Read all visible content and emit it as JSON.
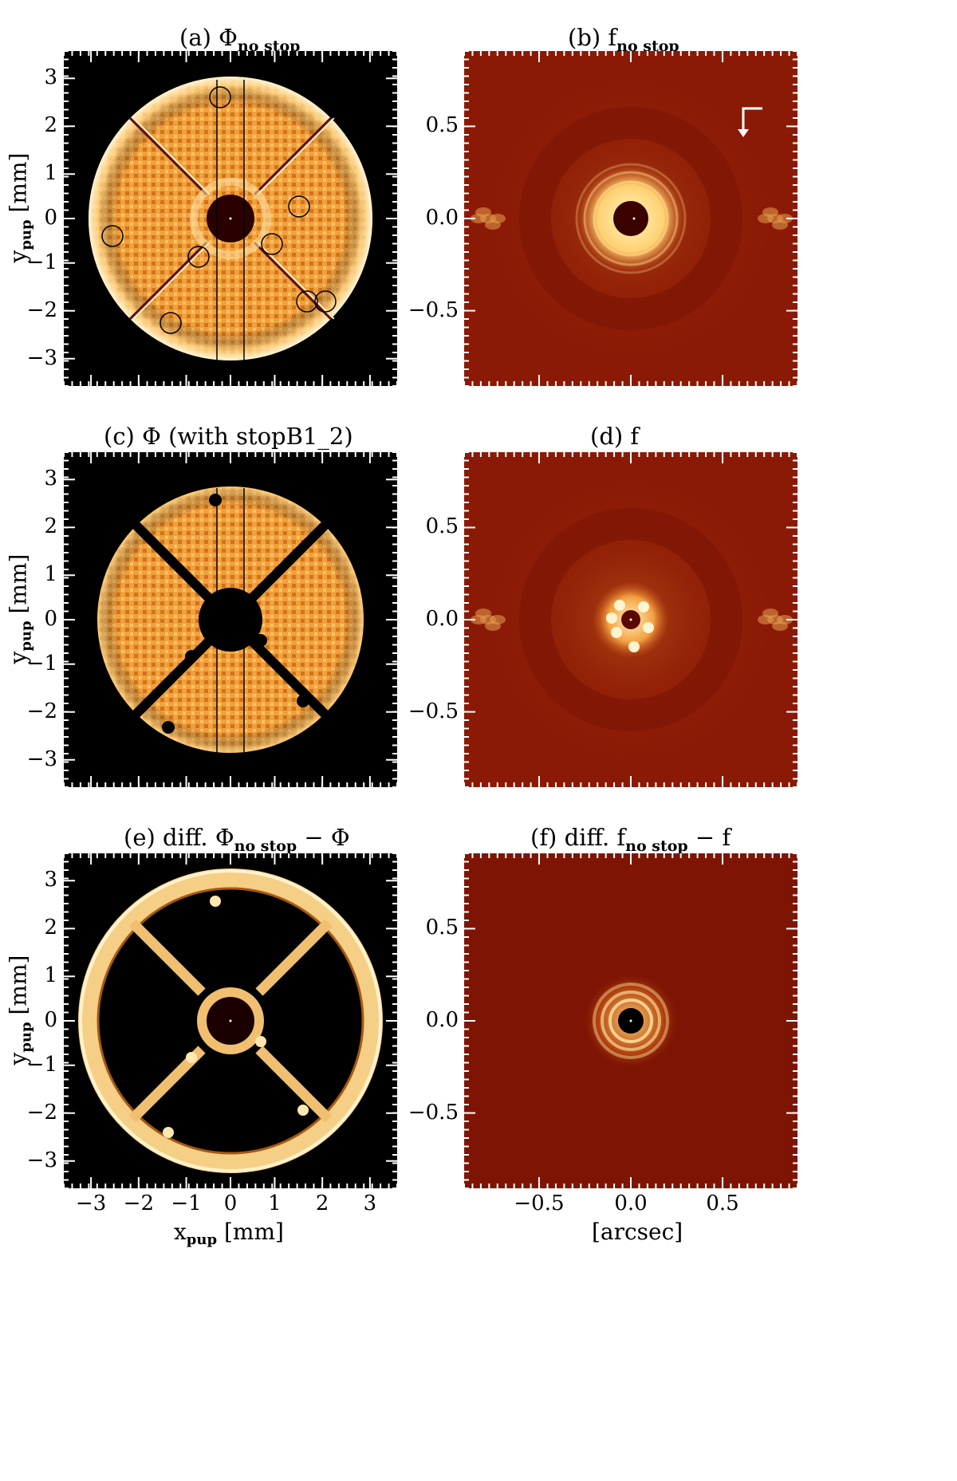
{
  "panels": [
    {
      "id": "a",
      "type": "pupil",
      "title_prefix": "(a) Φ",
      "title_sub": "no stop",
      "title_suffix": "",
      "variant": "full"
    },
    {
      "id": "b",
      "type": "psf",
      "title_prefix": "(b)  f",
      "title_sub": "no stop",
      "title_suffix": "",
      "variant": "full"
    },
    {
      "id": "c",
      "type": "pupil",
      "title_prefix": "(c) Φ (with stopB1_2)",
      "title_sub": "",
      "title_suffix": "",
      "variant": "stopped"
    },
    {
      "id": "d",
      "type": "psf",
      "title_prefix": "(d)  f",
      "title_sub": "",
      "title_suffix": "",
      "variant": "stopped"
    },
    {
      "id": "e",
      "type": "pupil",
      "title_prefix": "(e) diff. Φ",
      "title_sub": "no stop",
      "title_suffix": " − Φ",
      "variant": "diff"
    },
    {
      "id": "f",
      "type": "psf",
      "title_prefix": "(f) diff. f",
      "title_sub": "no stop",
      "title_suffix": " − f",
      "variant": "diff"
    }
  ],
  "axes": {
    "pupil_y_label_main": "y",
    "pupil_y_label_sub": "pup",
    "pupil_y_label_unit": " [mm]",
    "pupil_x_label_main": "x",
    "pupil_x_label_sub": "pup",
    "pupil_x_label_unit": " [mm]",
    "psf_x_label": "[arcsec]",
    "pupil_ticks": [
      "−3",
      "−2",
      "−1",
      "0",
      "1",
      "2",
      "3"
    ],
    "psf_ticks": [
      "−0.5",
      "0.0",
      "0.5"
    ]
  },
  "colors": {
    "psf_background": "#8a1a06",
    "psf_bright": "#ffe9a8",
    "pupil_fill": "#e38a2a",
    "pupil_rim": "#ffe3a6",
    "frame_black": "#000000"
  }
}
